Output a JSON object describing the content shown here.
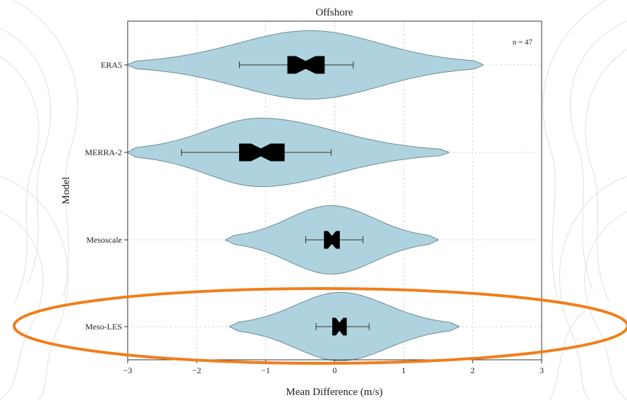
{
  "chart_data": {
    "type": "violin",
    "title": "Offshore",
    "xlabel": "Mean Difference (m/s)",
    "ylabel": "Model",
    "xlim": [
      -3,
      3
    ],
    "xticks": [
      "−3",
      "−2",
      "−1",
      "0",
      "1",
      "2",
      "3"
    ],
    "grid": true,
    "annotation": "n = 47",
    "colors": {
      "violin_fill": "#aed3de",
      "violin_edge": "#6b8a94",
      "box": "#000000",
      "highlight": "#f07e1a"
    },
    "highlighted_category": "Meso-LES",
    "categories": [
      "ERA5",
      "MERRA-2",
      "Mesoscale",
      "Meso-LES"
    ],
    "series": [
      {
        "category": "ERA5",
        "kde_range": [
          -3.0,
          2.15
        ],
        "whisker_low": -1.38,
        "q1": -0.68,
        "median": -0.42,
        "q3": -0.15,
        "whisker_high": 0.27,
        "peak": -0.35
      },
      {
        "category": "MERRA-2",
        "kde_range": [
          -3.0,
          1.65
        ],
        "whisker_low": -2.22,
        "q1": -1.38,
        "median": -1.07,
        "q3": -0.73,
        "whisker_high": -0.05,
        "peak": -1.08
      },
      {
        "category": "Mesoscale",
        "kde_range": [
          -1.58,
          1.5
        ],
        "whisker_low": -0.42,
        "q1": -0.15,
        "median": -0.04,
        "q3": 0.07,
        "whisker_high": 0.41,
        "peak": -0.05
      },
      {
        "category": "Meso-LES",
        "kde_range": [
          -1.52,
          1.8
        ],
        "whisker_low": -0.27,
        "q1": -0.03,
        "median": 0.07,
        "q3": 0.17,
        "whisker_high": 0.5,
        "peak": 0.08
      }
    ]
  }
}
